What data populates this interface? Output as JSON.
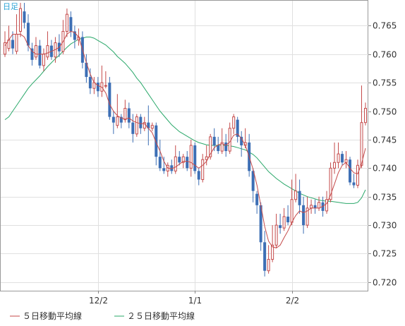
{
  "chart_data": {
    "type": "candlestick",
    "period_label": "日足",
    "y_ticks": [
      "0.765",
      "0.760",
      "0.755",
      "0.750",
      "0.745",
      "0.740",
      "0.735",
      "0.730",
      "0.725",
      "0.720"
    ],
    "x_ticks": [
      "12/2",
      "1/1",
      "2/2"
    ],
    "ylim": [
      0.7185,
      0.7695
    ],
    "grid": true,
    "legend_position": "bottom-left",
    "colors": {
      "up": "#c44a4a",
      "down": "#3d6fb5",
      "ma5": "#c44a4a",
      "ma25": "#2aa86a",
      "grid": "#e0e0e0",
      "axis": "#888888"
    },
    "legend": [
      {
        "label": "５日移動平均線",
        "color": "#c44a4a"
      },
      {
        "label": "２５日移動平均線",
        "color": "#2aa86a"
      }
    ],
    "candles": [
      [
        0.76,
        0.762,
        0.7595,
        0.764
      ],
      [
        0.761,
        0.7625,
        0.7605,
        0.765
      ],
      [
        0.7625,
        0.761,
        0.76,
        0.764
      ],
      [
        0.7605,
        0.7635,
        0.76,
        0.767
      ],
      [
        0.764,
        0.768,
        0.763,
        0.769
      ],
      [
        0.7675,
        0.7655,
        0.7645,
        0.769
      ],
      [
        0.7655,
        0.7615,
        0.7605,
        0.767
      ],
      [
        0.761,
        0.759,
        0.758,
        0.762
      ],
      [
        0.7595,
        0.7615,
        0.759,
        0.763
      ],
      [
        0.7615,
        0.758,
        0.7575,
        0.7625
      ],
      [
        0.758,
        0.76,
        0.757,
        0.761
      ],
      [
        0.7595,
        0.7615,
        0.759,
        0.764
      ],
      [
        0.7615,
        0.7595,
        0.759,
        0.7625
      ],
      [
        0.7595,
        0.762,
        0.7585,
        0.763
      ],
      [
        0.762,
        0.7605,
        0.7595,
        0.7635
      ],
      [
        0.7605,
        0.764,
        0.76,
        0.766
      ],
      [
        0.764,
        0.767,
        0.763,
        0.768
      ],
      [
        0.7665,
        0.764,
        0.763,
        0.7675
      ],
      [
        0.764,
        0.7625,
        0.761,
        0.765
      ],
      [
        0.7625,
        0.763,
        0.7615,
        0.7645
      ],
      [
        0.763,
        0.7585,
        0.7575,
        0.764
      ],
      [
        0.7585,
        0.756,
        0.755,
        0.76
      ],
      [
        0.756,
        0.754,
        0.753,
        0.7575
      ],
      [
        0.754,
        0.755,
        0.753,
        0.756
      ],
      [
        0.755,
        0.7535,
        0.7525,
        0.756
      ],
      [
        0.7535,
        0.755,
        0.7525,
        0.758
      ],
      [
        0.7545,
        0.7545,
        0.754,
        0.757
      ],
      [
        0.755,
        0.749,
        0.7485,
        0.756
      ],
      [
        0.749,
        0.748,
        0.746,
        0.75
      ],
      [
        0.7475,
        0.749,
        0.747,
        0.753
      ],
      [
        0.749,
        0.748,
        0.747,
        0.7495
      ],
      [
        0.7485,
        0.7505,
        0.748,
        0.752
      ],
      [
        0.7505,
        0.748,
        0.747,
        0.7515
      ],
      [
        0.748,
        0.746,
        0.7445,
        0.7495
      ],
      [
        0.746,
        0.749,
        0.7455,
        0.7495
      ],
      [
        0.749,
        0.747,
        0.746,
        0.7495
      ],
      [
        0.747,
        0.748,
        0.7465,
        0.749
      ],
      [
        0.748,
        0.747,
        0.744,
        0.751
      ],
      [
        0.747,
        0.7475,
        0.7465,
        0.748
      ],
      [
        0.7475,
        0.742,
        0.7405,
        0.748
      ],
      [
        0.742,
        0.74,
        0.7395,
        0.745
      ],
      [
        0.74,
        0.7395,
        0.739,
        0.742
      ],
      [
        0.7395,
        0.7405,
        0.7385,
        0.741
      ],
      [
        0.7405,
        0.7395,
        0.739,
        0.7415
      ],
      [
        0.7395,
        0.742,
        0.739,
        0.744
      ],
      [
        0.742,
        0.741,
        0.7405,
        0.743
      ],
      [
        0.741,
        0.742,
        0.74,
        0.7425
      ],
      [
        0.742,
        0.74,
        0.7395,
        0.743
      ],
      [
        0.74,
        0.744,
        0.7385,
        0.745
      ],
      [
        0.744,
        0.7395,
        0.739,
        0.7445
      ],
      [
        0.7395,
        0.738,
        0.737,
        0.74
      ],
      [
        0.738,
        0.7415,
        0.7375,
        0.7425
      ],
      [
        0.7415,
        0.742,
        0.7405,
        0.744
      ],
      [
        0.742,
        0.7455,
        0.7415,
        0.746
      ],
      [
        0.7455,
        0.744,
        0.743,
        0.747
      ],
      [
        0.744,
        0.743,
        0.7425,
        0.7455
      ],
      [
        0.743,
        0.7445,
        0.7425,
        0.747
      ],
      [
        0.7445,
        0.743,
        0.742,
        0.746
      ],
      [
        0.743,
        0.747,
        0.7425,
        0.748
      ],
      [
        0.747,
        0.749,
        0.746,
        0.7495
      ],
      [
        0.7485,
        0.7455,
        0.7445,
        0.749
      ],
      [
        0.7455,
        0.744,
        0.742,
        0.7465
      ],
      [
        0.744,
        0.7445,
        0.7435,
        0.747
      ],
      [
        0.7445,
        0.7395,
        0.7385,
        0.746
      ],
      [
        0.7395,
        0.736,
        0.734,
        0.74
      ],
      [
        0.7355,
        0.7335,
        0.732,
        0.736
      ],
      [
        0.7335,
        0.727,
        0.7255,
        0.734
      ],
      [
        0.727,
        0.722,
        0.721,
        0.729
      ],
      [
        0.722,
        0.724,
        0.7215,
        0.7265
      ],
      [
        0.724,
        0.7265,
        0.7235,
        0.73
      ],
      [
        0.7265,
        0.73,
        0.726,
        0.732
      ],
      [
        0.73,
        0.7295,
        0.7285,
        0.732
      ],
      [
        0.7295,
        0.7315,
        0.729,
        0.733
      ],
      [
        0.7315,
        0.7305,
        0.73,
        0.7335
      ],
      [
        0.7305,
        0.7345,
        0.73,
        0.738
      ],
      [
        0.7345,
        0.736,
        0.734,
        0.739
      ],
      [
        0.736,
        0.7335,
        0.732,
        0.738
      ],
      [
        0.7335,
        0.73,
        0.7285,
        0.735
      ],
      [
        0.73,
        0.733,
        0.7295,
        0.735
      ],
      [
        0.733,
        0.7335,
        0.732,
        0.7345
      ],
      [
        0.7335,
        0.733,
        0.732,
        0.7345
      ],
      [
        0.733,
        0.734,
        0.7325,
        0.735
      ],
      [
        0.734,
        0.7325,
        0.7315,
        0.735
      ],
      [
        0.7325,
        0.7345,
        0.732,
        0.736
      ],
      [
        0.7345,
        0.74,
        0.734,
        0.741
      ],
      [
        0.74,
        0.741,
        0.739,
        0.7445
      ],
      [
        0.741,
        0.7425,
        0.74,
        0.7445
      ],
      [
        0.7425,
        0.741,
        0.7405,
        0.743
      ],
      [
        0.741,
        0.7415,
        0.74,
        0.743
      ],
      [
        0.7415,
        0.7375,
        0.737,
        0.742
      ],
      [
        0.7375,
        0.737,
        0.7365,
        0.739
      ],
      [
        0.737,
        0.7405,
        0.7365,
        0.7415
      ],
      [
        0.7405,
        0.748,
        0.74,
        0.7545
      ],
      [
        0.748,
        0.7505,
        0.7475,
        0.7515
      ]
    ],
    "ma5": [
      0.7615,
      0.7625,
      0.7635,
      0.7635,
      0.7635,
      0.763,
      0.7615,
      0.7605,
      0.76,
      0.76,
      0.76,
      0.7602,
      0.7605,
      0.7608,
      0.7612,
      0.7622,
      0.7635,
      0.764,
      0.7638,
      0.763,
      0.7608,
      0.7585,
      0.7565,
      0.755,
      0.7545,
      0.7542,
      0.7532,
      0.7512,
      0.75,
      0.7492,
      0.7488,
      0.7486,
      0.7488,
      0.7483,
      0.748,
      0.7478,
      0.7478,
      0.747,
      0.7462,
      0.7445,
      0.743,
      0.7412,
      0.74,
      0.7399,
      0.7402,
      0.7407,
      0.7412,
      0.7412,
      0.741,
      0.7405,
      0.74,
      0.7405,
      0.7412,
      0.7425,
      0.7436,
      0.7441,
      0.7443,
      0.744,
      0.7446,
      0.7458,
      0.746,
      0.7452,
      0.744,
      0.742,
      0.7398,
      0.737,
      0.7335,
      0.7298,
      0.7272,
      0.7262,
      0.726,
      0.7265,
      0.7278,
      0.729,
      0.7305,
      0.7317,
      0.7325,
      0.7322,
      0.7325,
      0.733,
      0.733,
      0.733,
      0.7333,
      0.7338,
      0.7353,
      0.7372,
      0.7392,
      0.7405,
      0.741,
      0.74,
      0.7392,
      0.739,
      0.7408,
      0.7435
    ],
    "ma25": [
      0.7485,
      0.749,
      0.75,
      0.751,
      0.752,
      0.753,
      0.754,
      0.7548,
      0.7555,
      0.7562,
      0.757,
      0.7578,
      0.7585,
      0.7592,
      0.7598,
      0.7605,
      0.7612,
      0.7618,
      0.7622,
      0.7626,
      0.7628,
      0.763,
      0.763,
      0.7628,
      0.7624,
      0.762,
      0.7616,
      0.761,
      0.7604,
      0.7596,
      0.759,
      0.7584,
      0.7576,
      0.7568,
      0.7558,
      0.755,
      0.754,
      0.753,
      0.752,
      0.751,
      0.75,
      0.7492,
      0.7484,
      0.7476,
      0.747,
      0.7464,
      0.746,
      0.7456,
      0.7452,
      0.7448,
      0.7445,
      0.7443,
      0.7441,
      0.744,
      0.744,
      0.744,
      0.744,
      0.744,
      0.7439,
      0.7438,
      0.7436,
      0.7434,
      0.7432,
      0.7428,
      0.7424,
      0.7418,
      0.741,
      0.7402,
      0.7394,
      0.7388,
      0.7382,
      0.7377,
      0.7372,
      0.7368,
      0.7364,
      0.736,
      0.7356,
      0.7353,
      0.735,
      0.7348,
      0.7346,
      0.7344,
      0.7343,
      0.7342,
      0.7342,
      0.7341,
      0.734,
      0.7339,
      0.7338,
      0.7338,
      0.7338,
      0.734,
      0.7348,
      0.7362
    ]
  }
}
